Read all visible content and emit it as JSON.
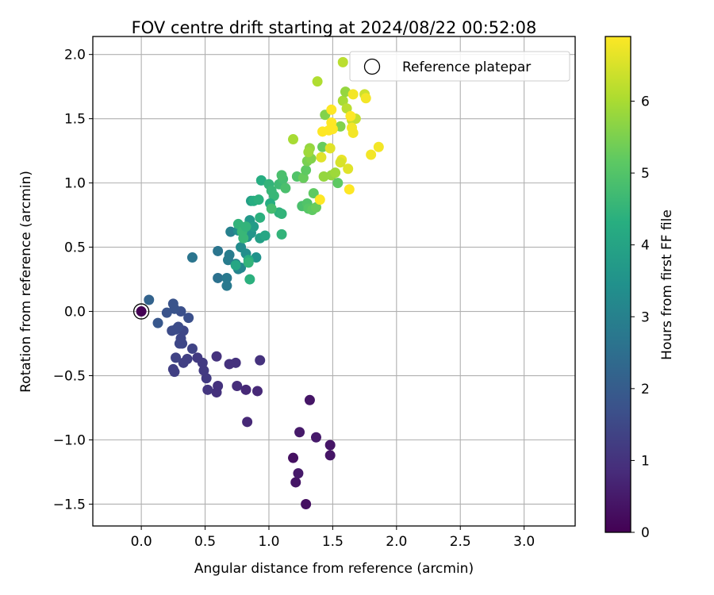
{
  "chart_data": {
    "type": "scatter",
    "title": "FOV centre drift starting at 2024/08/22 00:52:08",
    "xlabel": "Angular distance from reference (arcmin)",
    "ylabel": "Rotation from reference (arcmin)",
    "xlim": [
      -0.38,
      3.4
    ],
    "ylim": [
      -1.67,
      2.14
    ],
    "x_ticks": [
      0.0,
      0.5,
      1.0,
      1.5,
      2.0,
      2.5,
      3.0
    ],
    "x_tick_labels": [
      "0.0",
      "0.5",
      "1.0",
      "1.5",
      "2.0",
      "2.5",
      "3.0"
    ],
    "y_ticks": [
      -1.5,
      -1.0,
      -0.5,
      0.0,
      0.5,
      1.0,
      1.5,
      2.0
    ],
    "y_tick_labels": [
      "−1.5",
      "−1.0",
      "−0.5",
      "0.0",
      "0.5",
      "1.0",
      "1.5",
      "2.0"
    ],
    "grid": true,
    "legend": {
      "position": "top-right",
      "entries": [
        {
          "label": "Reference platepar",
          "marker": "open-circle"
        }
      ]
    },
    "reference_point": {
      "x": 0.0,
      "y": 0.0
    },
    "colorbar": {
      "label": "Hours from first FF file",
      "colormap": "viridis",
      "range": [
        0,
        6.9
      ],
      "ticks": [
        0,
        1,
        2,
        3,
        4,
        5,
        6
      ],
      "tick_labels": [
        "0",
        "1",
        "2",
        "3",
        "4",
        "5",
        "6"
      ]
    },
    "points": [
      {
        "x": 0.0,
        "y": 0.0,
        "c": 0.0
      },
      {
        "x": 1.29,
        "y": -1.5,
        "c": 0.3
      },
      {
        "x": 1.21,
        "y": -1.33,
        "c": 0.4
      },
      {
        "x": 1.23,
        "y": -1.26,
        "c": 0.5
      },
      {
        "x": 1.19,
        "y": -1.14,
        "c": 0.3
      },
      {
        "x": 1.48,
        "y": -1.12,
        "c": 0.4
      },
      {
        "x": 1.48,
        "y": -1.04,
        "c": 0.4
      },
      {
        "x": 1.37,
        "y": -0.98,
        "c": 0.5
      },
      {
        "x": 1.24,
        "y": -0.94,
        "c": 0.5
      },
      {
        "x": 1.32,
        "y": -0.69,
        "c": 0.4
      },
      {
        "x": 0.83,
        "y": -0.86,
        "c": 0.8
      },
      {
        "x": 0.91,
        "y": -0.62,
        "c": 0.8
      },
      {
        "x": 0.82,
        "y": -0.61,
        "c": 0.8
      },
      {
        "x": 0.75,
        "y": -0.58,
        "c": 0.9
      },
      {
        "x": 0.93,
        "y": -0.38,
        "c": 1.0
      },
      {
        "x": 0.74,
        "y": -0.4,
        "c": 1.0
      },
      {
        "x": 0.69,
        "y": -0.41,
        "c": 1.0
      },
      {
        "x": 0.59,
        "y": -0.35,
        "c": 1.0
      },
      {
        "x": 0.59,
        "y": -0.63,
        "c": 1.0
      },
      {
        "x": 0.6,
        "y": -0.58,
        "c": 1.0
      },
      {
        "x": 0.52,
        "y": -0.61,
        "c": 1.1
      },
      {
        "x": 0.51,
        "y": -0.52,
        "c": 1.2
      },
      {
        "x": 0.49,
        "y": -0.46,
        "c": 1.2
      },
      {
        "x": 0.48,
        "y": -0.4,
        "c": 1.2
      },
      {
        "x": 0.44,
        "y": -0.36,
        "c": 1.2
      },
      {
        "x": 0.36,
        "y": -0.37,
        "c": 1.3
      },
      {
        "x": 0.33,
        "y": -0.4,
        "c": 1.3
      },
      {
        "x": 0.25,
        "y": -0.45,
        "c": 1.3
      },
      {
        "x": 0.26,
        "y": -0.47,
        "c": 1.3
      },
      {
        "x": 0.27,
        "y": -0.36,
        "c": 1.4
      },
      {
        "x": 0.4,
        "y": -0.29,
        "c": 1.4
      },
      {
        "x": 0.3,
        "y": -0.25,
        "c": 1.5
      },
      {
        "x": 0.32,
        "y": -0.25,
        "c": 1.5
      },
      {
        "x": 0.31,
        "y": -0.21,
        "c": 1.5
      },
      {
        "x": 0.33,
        "y": -0.15,
        "c": 1.5
      },
      {
        "x": 0.27,
        "y": -0.14,
        "c": 1.6
      },
      {
        "x": 0.24,
        "y": -0.15,
        "c": 1.6
      },
      {
        "x": 0.29,
        "y": -0.12,
        "c": 1.6
      },
      {
        "x": 0.37,
        "y": -0.05,
        "c": 1.7
      },
      {
        "x": 0.31,
        "y": 0.0,
        "c": 1.7
      },
      {
        "x": 0.26,
        "y": 0.02,
        "c": 1.8
      },
      {
        "x": 0.25,
        "y": 0.06,
        "c": 1.8
      },
      {
        "x": 0.2,
        "y": -0.01,
        "c": 1.8
      },
      {
        "x": 0.13,
        "y": -0.09,
        "c": 1.9
      },
      {
        "x": 0.06,
        "y": 0.09,
        "c": 2.2
      },
      {
        "x": 0.4,
        "y": 0.42,
        "c": 2.7
      },
      {
        "x": 0.6,
        "y": 0.26,
        "c": 2.6
      },
      {
        "x": 0.6,
        "y": 0.47,
        "c": 2.7
      },
      {
        "x": 0.67,
        "y": 0.2,
        "c": 2.8
      },
      {
        "x": 0.67,
        "y": 0.26,
        "c": 2.8
      },
      {
        "x": 0.68,
        "y": 0.4,
        "c": 2.9
      },
      {
        "x": 0.69,
        "y": 0.44,
        "c": 2.9
      },
      {
        "x": 0.7,
        "y": 0.62,
        "c": 3.0
      },
      {
        "x": 0.74,
        "y": 0.37,
        "c": 3.1
      },
      {
        "x": 0.76,
        "y": 0.33,
        "c": 3.1
      },
      {
        "x": 0.78,
        "y": 0.34,
        "c": 3.2
      },
      {
        "x": 0.78,
        "y": 0.5,
        "c": 3.3
      },
      {
        "x": 0.76,
        "y": 0.63,
        "c": 3.4
      },
      {
        "x": 0.82,
        "y": 0.45,
        "c": 3.4
      },
      {
        "x": 0.83,
        "y": 0.58,
        "c": 3.5
      },
      {
        "x": 0.86,
        "y": 0.61,
        "c": 3.6
      },
      {
        "x": 0.85,
        "y": 0.71,
        "c": 3.7
      },
      {
        "x": 0.9,
        "y": 0.42,
        "c": 3.5
      },
      {
        "x": 0.88,
        "y": 0.66,
        "c": 3.8
      },
      {
        "x": 0.93,
        "y": 0.57,
        "c": 3.9
      },
      {
        "x": 0.97,
        "y": 0.59,
        "c": 4.1
      },
      {
        "x": 0.86,
        "y": 0.86,
        "c": 3.9
      },
      {
        "x": 0.74,
        "y": 0.36,
        "c": 4.1
      },
      {
        "x": 0.84,
        "y": 0.4,
        "c": 4.3
      },
      {
        "x": 0.85,
        "y": 0.25,
        "c": 4.4
      },
      {
        "x": 0.76,
        "y": 0.68,
        "c": 4.5
      },
      {
        "x": 0.79,
        "y": 0.62,
        "c": 4.6
      },
      {
        "x": 0.8,
        "y": 0.57,
        "c": 4.6
      },
      {
        "x": 0.82,
        "y": 0.66,
        "c": 4.5
      },
      {
        "x": 0.84,
        "y": 0.38,
        "c": 4.5
      },
      {
        "x": 0.88,
        "y": 0.86,
        "c": 4.3
      },
      {
        "x": 0.92,
        "y": 0.87,
        "c": 4.4
      },
      {
        "x": 0.93,
        "y": 0.73,
        "c": 4.4
      },
      {
        "x": 0.94,
        "y": 1.02,
        "c": 4.3
      },
      {
        "x": 1.0,
        "y": 0.99,
        "c": 4.5
      },
      {
        "x": 1.02,
        "y": 0.94,
        "c": 4.6
      },
      {
        "x": 1.04,
        "y": 0.9,
        "c": 4.6
      },
      {
        "x": 1.01,
        "y": 0.84,
        "c": 4.3
      },
      {
        "x": 1.08,
        "y": 0.77,
        "c": 4.4
      },
      {
        "x": 1.1,
        "y": 0.6,
        "c": 4.5
      },
      {
        "x": 1.1,
        "y": 0.76,
        "c": 4.5
      },
      {
        "x": 1.02,
        "y": 0.8,
        "c": 4.8
      },
      {
        "x": 1.08,
        "y": 0.99,
        "c": 4.7
      },
      {
        "x": 1.11,
        "y": 1.03,
        "c": 4.8
      },
      {
        "x": 1.1,
        "y": 1.06,
        "c": 4.9
      },
      {
        "x": 1.13,
        "y": 0.96,
        "c": 4.9
      },
      {
        "x": 1.22,
        "y": 1.05,
        "c": 5.0
      },
      {
        "x": 1.26,
        "y": 0.82,
        "c": 4.9
      },
      {
        "x": 1.3,
        "y": 0.84,
        "c": 5.0
      },
      {
        "x": 1.31,
        "y": 0.8,
        "c": 5.1
      },
      {
        "x": 1.34,
        "y": 0.79,
        "c": 5.2
      },
      {
        "x": 1.37,
        "y": 0.81,
        "c": 5.3
      },
      {
        "x": 1.35,
        "y": 0.92,
        "c": 5.2
      },
      {
        "x": 1.27,
        "y": 1.04,
        "c": 5.3
      },
      {
        "x": 1.29,
        "y": 1.1,
        "c": 5.2
      },
      {
        "x": 1.3,
        "y": 1.17,
        "c": 5.5
      },
      {
        "x": 1.33,
        "y": 1.19,
        "c": 5.6
      },
      {
        "x": 1.32,
        "y": 1.27,
        "c": 5.8
      },
      {
        "x": 1.31,
        "y": 1.24,
        "c": 5.9
      },
      {
        "x": 1.19,
        "y": 1.34,
        "c": 6.0
      },
      {
        "x": 1.42,
        "y": 1.28,
        "c": 5.3
      },
      {
        "x": 1.44,
        "y": 1.53,
        "c": 5.6
      },
      {
        "x": 1.43,
        "y": 1.05,
        "c": 5.8
      },
      {
        "x": 1.49,
        "y": 1.06,
        "c": 5.8
      },
      {
        "x": 1.52,
        "y": 1.08,
        "c": 5.9
      },
      {
        "x": 1.54,
        "y": 1.0,
        "c": 5.2
      },
      {
        "x": 1.56,
        "y": 1.44,
        "c": 5.6
      },
      {
        "x": 1.58,
        "y": 1.64,
        "c": 6.0
      },
      {
        "x": 1.6,
        "y": 1.71,
        "c": 5.8
      },
      {
        "x": 1.61,
        "y": 1.58,
        "c": 6.2
      },
      {
        "x": 1.38,
        "y": 1.79,
        "c": 6.1
      },
      {
        "x": 1.58,
        "y": 1.94,
        "c": 6.2
      },
      {
        "x": 1.65,
        "y": 1.49,
        "c": 6.3
      },
      {
        "x": 1.68,
        "y": 1.5,
        "c": 6.3
      },
      {
        "x": 1.75,
        "y": 1.69,
        "c": 6.4
      },
      {
        "x": 1.76,
        "y": 1.66,
        "c": 6.8
      },
      {
        "x": 1.66,
        "y": 1.69,
        "c": 6.8
      },
      {
        "x": 1.64,
        "y": 1.52,
        "c": 6.9
      },
      {
        "x": 1.65,
        "y": 1.43,
        "c": 6.8
      },
      {
        "x": 1.66,
        "y": 1.39,
        "c": 6.8
      },
      {
        "x": 1.62,
        "y": 1.11,
        "c": 6.6
      },
      {
        "x": 1.63,
        "y": 0.95,
        "c": 6.9
      },
      {
        "x": 1.8,
        "y": 1.22,
        "c": 6.8
      },
      {
        "x": 1.86,
        "y": 1.28,
        "c": 6.8
      },
      {
        "x": 1.57,
        "y": 1.18,
        "c": 6.7
      },
      {
        "x": 1.56,
        "y": 1.16,
        "c": 6.5
      },
      {
        "x": 1.49,
        "y": 1.47,
        "c": 6.9
      },
      {
        "x": 1.5,
        "y": 1.42,
        "c": 6.9
      },
      {
        "x": 1.47,
        "y": 1.41,
        "c": 6.9
      },
      {
        "x": 1.42,
        "y": 1.4,
        "c": 6.9
      },
      {
        "x": 1.41,
        "y": 1.2,
        "c": 6.6
      },
      {
        "x": 1.49,
        "y": 1.57,
        "c": 6.9
      },
      {
        "x": 1.48,
        "y": 1.27,
        "c": 6.6
      },
      {
        "x": 1.4,
        "y": 0.87,
        "c": 6.9
      }
    ]
  }
}
